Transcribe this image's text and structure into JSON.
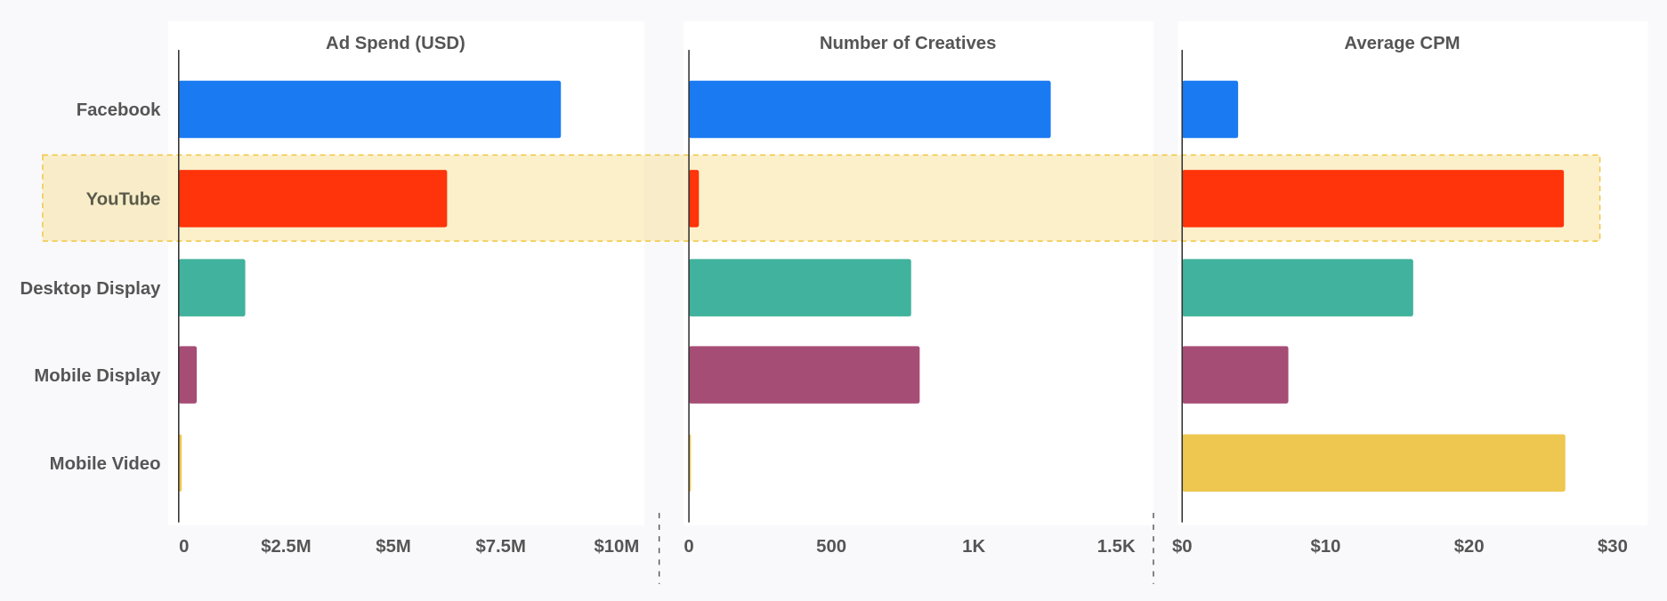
{
  "chart_data": {
    "type": "bar",
    "orientation": "horizontal",
    "categories": [
      "Facebook",
      "YouTube",
      "Desktop Display",
      "Mobile Display",
      "Mobile Video"
    ],
    "highlighted_category": "YouTube",
    "colors": [
      "#1a7af2",
      "#ff340a",
      "#41b29d",
      "#a64d76",
      "#edc74f"
    ],
    "panels": [
      {
        "title": "Ad Spend (USD)",
        "unit": "USD millions",
        "xlim": [
          0,
          10
        ],
        "ticks": [
          0,
          2.5,
          5,
          7.5,
          10
        ],
        "tick_labels": [
          "0",
          "$2.5M",
          "$5M",
          "$7.5M",
          "$10M"
        ],
        "values": [
          8.9,
          6.25,
          1.55,
          0.42,
          0.07
        ]
      },
      {
        "title": "Number of Creatives",
        "unit": "count",
        "xlim": [
          0,
          1500
        ],
        "ticks": [
          0,
          500,
          1000,
          1500
        ],
        "tick_labels": [
          "0",
          "500",
          "1K",
          "1.5K"
        ],
        "values": [
          1270,
          35,
          780,
          810,
          7
        ]
      },
      {
        "title": "Average CPM",
        "unit": "USD",
        "xlim": [
          0,
          30
        ],
        "ticks": [
          0,
          10,
          20,
          30
        ],
        "tick_labels": [
          "$0",
          "$10",
          "$20",
          "$30"
        ],
        "values": [
          3.9,
          26.6,
          16.1,
          7.4,
          26.7
        ]
      }
    ],
    "grid": false,
    "legend": "none"
  }
}
